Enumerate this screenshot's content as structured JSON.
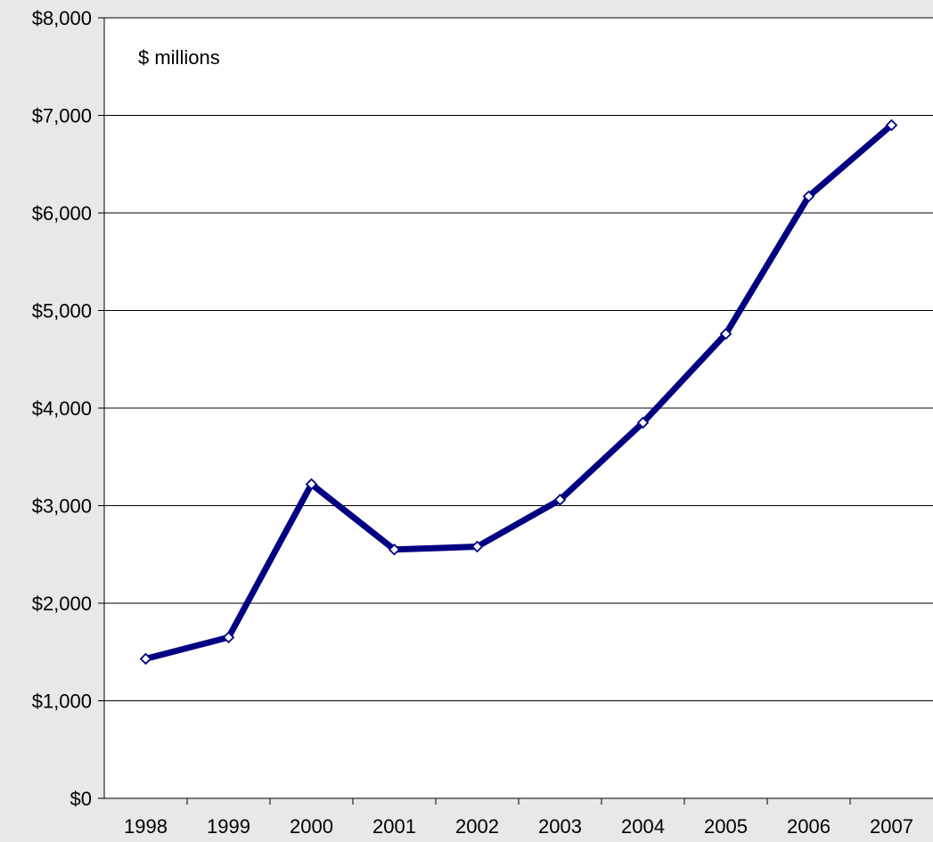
{
  "chart_data": {
    "type": "line",
    "annotation": "$ millions",
    "categories": [
      "1998",
      "1999",
      "2000",
      "2001",
      "2002",
      "2003",
      "2004",
      "2005",
      "2006",
      "2007"
    ],
    "series": [
      {
        "values": [
          1430,
          1650,
          3220,
          2550,
          2580,
          3060,
          3850,
          4760,
          6170,
          6900
        ]
      }
    ],
    "y_ticks": [
      "$0",
      "$1,000",
      "$2,000",
      "$3,000",
      "$4,000",
      "$5,000",
      "$6,000",
      "$7,000",
      "$8,000"
    ],
    "ylim": [
      0,
      8000
    ],
    "grid": "horizontal",
    "colors": {
      "line": "#000080",
      "marker_fill": "#ffffff",
      "background": "#e8e8e8",
      "plot_background": "#ffffff",
      "grid": "#000000"
    }
  }
}
